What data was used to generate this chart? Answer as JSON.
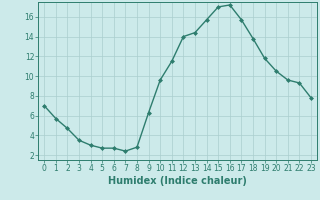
{
  "x": [
    0,
    1,
    2,
    3,
    4,
    5,
    6,
    7,
    8,
    9,
    10,
    11,
    12,
    13,
    14,
    15,
    16,
    17,
    18,
    19,
    20,
    21,
    22,
    23
  ],
  "y": [
    7.0,
    5.7,
    4.7,
    3.5,
    3.0,
    2.7,
    2.7,
    2.4,
    2.8,
    6.3,
    9.6,
    11.5,
    14.0,
    14.4,
    15.7,
    17.0,
    17.2,
    15.7,
    13.8,
    11.8,
    10.5,
    9.6,
    9.3,
    7.8
  ],
  "line_color": "#2e7d6e",
  "marker": "D",
  "marker_size": 2.0,
  "bg_color": "#cceaea",
  "grid_color": "#aacece",
  "xlabel": "Humidex (Indice chaleur)",
  "xlim": [
    -0.5,
    23.5
  ],
  "ylim": [
    1.5,
    17.5
  ],
  "yticks": [
    2,
    4,
    6,
    8,
    10,
    12,
    14,
    16
  ],
  "xticks": [
    0,
    1,
    2,
    3,
    4,
    5,
    6,
    7,
    8,
    9,
    10,
    11,
    12,
    13,
    14,
    15,
    16,
    17,
    18,
    19,
    20,
    21,
    22,
    23
  ],
  "tick_label_fontsize": 5.5,
  "xlabel_fontsize": 7.0,
  "linewidth": 1.0
}
